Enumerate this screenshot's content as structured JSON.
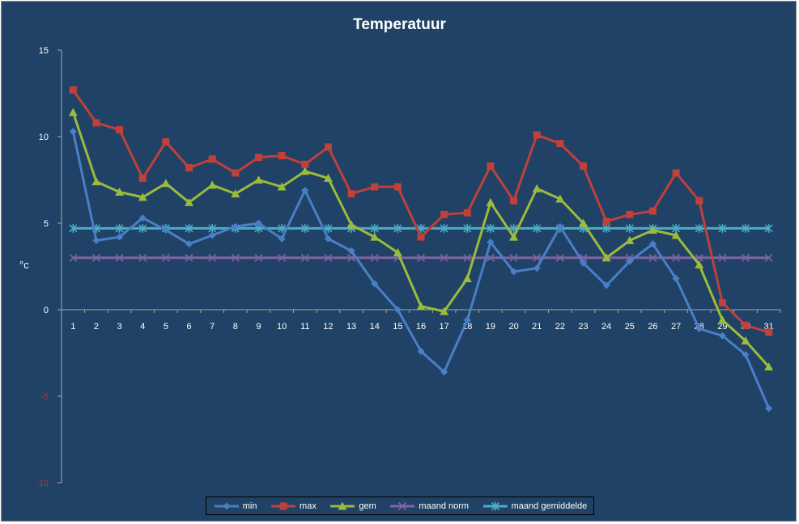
{
  "chart_data": {
    "type": "line",
    "title": "Temperatuur",
    "ylabel": "°c",
    "xlabel": "",
    "ylim": [
      -10,
      15
    ],
    "yticks": [
      15,
      10,
      5,
      0,
      -5,
      -10
    ],
    "negative_tick_color": "#c0302a",
    "categories": [
      "1",
      "2",
      "3",
      "4",
      "5",
      "6",
      "7",
      "8",
      "9",
      "10",
      "11",
      "12",
      "13",
      "14",
      "15",
      "16",
      "17",
      "18",
      "19",
      "20",
      "21",
      "22",
      "23",
      "24",
      "25",
      "26",
      "27",
      "28",
      "29",
      "30",
      "31"
    ],
    "series": [
      {
        "name": "min",
        "color": "#4a7fc7",
        "marker": "diamond",
        "values": [
          10.3,
          4.0,
          4.2,
          5.3,
          4.6,
          3.8,
          4.3,
          4.8,
          5.0,
          4.1,
          6.9,
          4.1,
          3.4,
          1.5,
          0.0,
          -2.4,
          -3.6,
          -0.6,
          3.9,
          2.2,
          2.4,
          4.8,
          2.7,
          1.4,
          2.8,
          3.8,
          1.8,
          -1.1,
          -1.5,
          -2.6,
          -5.7
        ]
      },
      {
        "name": "max",
        "color": "#c0403a",
        "marker": "square",
        "values": [
          12.7,
          10.8,
          10.4,
          7.6,
          9.7,
          8.2,
          8.7,
          7.9,
          8.8,
          8.9,
          8.4,
          9.4,
          6.7,
          7.1,
          7.1,
          4.2,
          5.5,
          5.6,
          8.3,
          6.3,
          10.1,
          9.6,
          8.3,
          5.1,
          5.5,
          5.7,
          7.9,
          6.3,
          0.4,
          -0.9,
          -1.3
        ]
      },
      {
        "name": "gem",
        "color": "#9bbb3c",
        "marker": "triangle",
        "values": [
          11.4,
          7.4,
          6.8,
          6.5,
          7.3,
          6.2,
          7.2,
          6.7,
          7.5,
          7.1,
          8.0,
          7.6,
          4.9,
          4.2,
          3.3,
          0.2,
          -0.1,
          1.8,
          6.2,
          4.2,
          7.0,
          6.4,
          5.0,
          3.0,
          4.0,
          4.6,
          4.3,
          2.6,
          -0.6,
          -1.8,
          -3.3
        ]
      },
      {
        "name": "maand norm",
        "color": "#8064a2",
        "marker": "x",
        "values": [
          3.0,
          3.0,
          3.0,
          3.0,
          3.0,
          3.0,
          3.0,
          3.0,
          3.0,
          3.0,
          3.0,
          3.0,
          3.0,
          3.0,
          3.0,
          3.0,
          3.0,
          3.0,
          3.0,
          3.0,
          3.0,
          3.0,
          3.0,
          3.0,
          3.0,
          3.0,
          3.0,
          3.0,
          3.0,
          3.0,
          3.0
        ]
      },
      {
        "name": "maand gemiddelde",
        "color": "#4bacc6",
        "marker": "asterisk",
        "values": [
          4.7,
          4.7,
          4.7,
          4.7,
          4.7,
          4.7,
          4.7,
          4.7,
          4.7,
          4.7,
          4.7,
          4.7,
          4.7,
          4.7,
          4.7,
          4.7,
          4.7,
          4.7,
          4.7,
          4.7,
          4.7,
          4.7,
          4.7,
          4.7,
          4.7,
          4.7,
          4.7,
          4.7,
          4.7,
          4.7,
          4.7
        ]
      }
    ],
    "grid": false,
    "legend_position": "bottom"
  }
}
